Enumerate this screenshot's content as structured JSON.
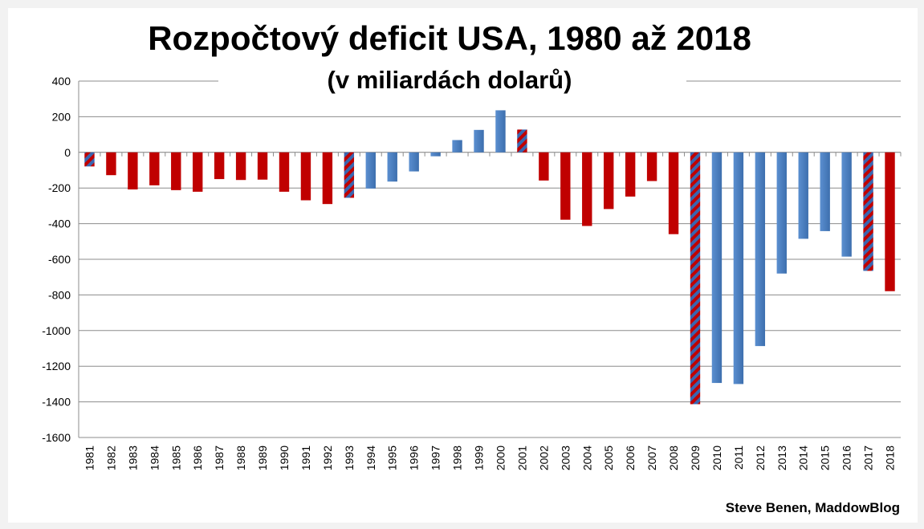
{
  "chart_data": {
    "type": "bar",
    "title": "Rozpočtový deficit USA, 1980 až 2018",
    "subtitle": "(v miliardách dolarů)",
    "source": "Steve Benen, MaddowBlog",
    "xlabel": "",
    "ylabel": "",
    "ylim": [
      -1600,
      400
    ],
    "yticks": [
      400,
      200,
      0,
      -200,
      -400,
      -600,
      -800,
      -1000,
      -1200,
      -1400,
      -1600
    ],
    "grid": true,
    "categories": [
      "1981",
      "1982",
      "1983",
      "1984",
      "1985",
      "1986",
      "1987",
      "1988",
      "1989",
      "1990",
      "1991",
      "1992",
      "1993",
      "1994",
      "1995",
      "1996",
      "1997",
      "1998",
      "1999",
      "2000",
      "2001",
      "2002",
      "2003",
      "2004",
      "2005",
      "2006",
      "2007",
      "2008",
      "2009",
      "2010",
      "2011",
      "2012",
      "2013",
      "2014",
      "2015",
      "2016",
      "2017",
      "2018"
    ],
    "values": [
      -79,
      -128,
      -208,
      -185,
      -212,
      -221,
      -150,
      -155,
      -153,
      -221,
      -269,
      -290,
      -255,
      -203,
      -164,
      -107,
      -22,
      69,
      126,
      236,
      128,
      -158,
      -378,
      -413,
      -318,
      -248,
      -161,
      -459,
      -1413,
      -1294,
      -1300,
      -1087,
      -680,
      -485,
      -442,
      -585,
      -665,
      -779
    ],
    "party": [
      "split",
      "R",
      "R",
      "R",
      "R",
      "R",
      "R",
      "R",
      "R",
      "R",
      "R",
      "R",
      "split",
      "D",
      "D",
      "D",
      "D",
      "D",
      "D",
      "D",
      "split",
      "R",
      "R",
      "R",
      "R",
      "R",
      "R",
      "R",
      "split",
      "D",
      "D",
      "D",
      "D",
      "D",
      "D",
      "D",
      "split",
      "R"
    ],
    "colors": {
      "R": "#c00000",
      "D": "#4a7ebb",
      "split_stripe_a": "#c00000",
      "split_stripe_b": "#3a66b0"
    }
  }
}
